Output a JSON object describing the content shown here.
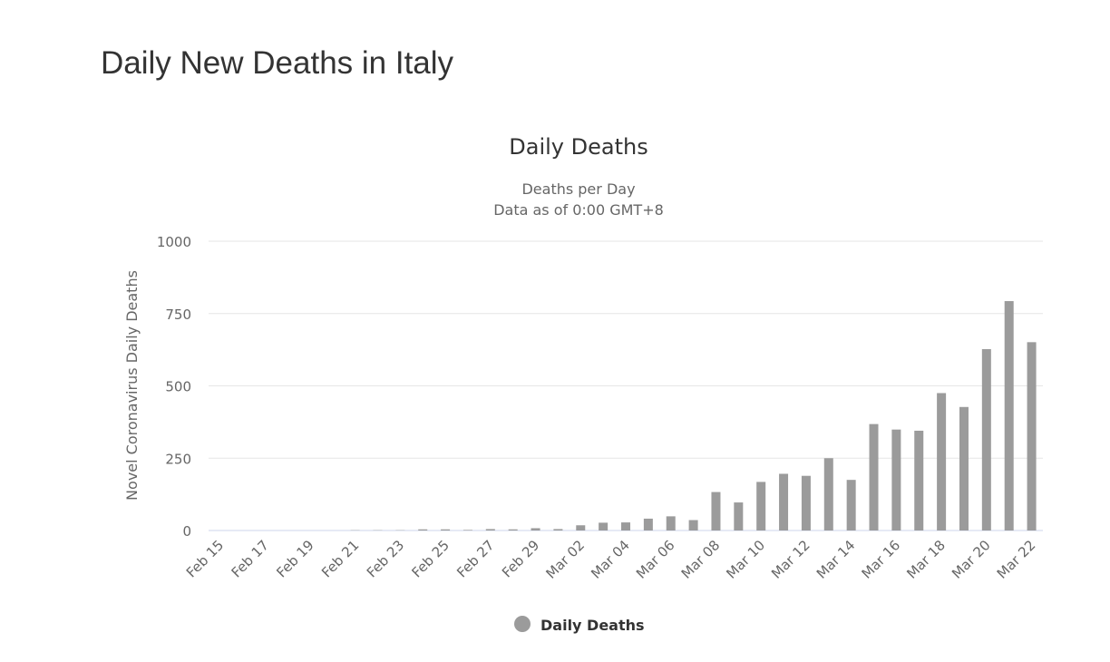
{
  "page": {
    "title": "Daily New Deaths in Italy"
  },
  "chart_data": {
    "type": "bar",
    "title": "Daily Deaths",
    "subtitle_lines": [
      "Deaths per Day",
      "Data as of 0:00 GMT+8"
    ],
    "xlabel": "",
    "ylabel": "Novel Coronavirus Daily Deaths",
    "ylim": [
      0,
      1000
    ],
    "y_ticks": [
      0,
      250,
      500,
      750,
      1000
    ],
    "x_tick_labels": [
      "Feb 15",
      "Feb 17",
      "Feb 19",
      "Feb 21",
      "Feb 23",
      "Feb 25",
      "Feb 27",
      "Feb 29",
      "Mar 02",
      "Mar 04",
      "Mar 06",
      "Mar 08",
      "Mar 10",
      "Mar 12",
      "Mar 14",
      "Mar 16",
      "Mar 18",
      "Mar 20",
      "Mar 22"
    ],
    "grid": true,
    "legend_position": "bottom-center",
    "categories": [
      "Feb 15",
      "Feb 16",
      "Feb 17",
      "Feb 18",
      "Feb 19",
      "Feb 20",
      "Feb 21",
      "Feb 22",
      "Feb 23",
      "Feb 24",
      "Feb 25",
      "Feb 26",
      "Feb 27",
      "Feb 28",
      "Feb 29",
      "Mar 01",
      "Mar 02",
      "Mar 03",
      "Mar 04",
      "Mar 05",
      "Mar 06",
      "Mar 07",
      "Mar 08",
      "Mar 09",
      "Mar 10",
      "Mar 11",
      "Mar 12",
      "Mar 13",
      "Mar 14",
      "Mar 15",
      "Mar 16",
      "Mar 17",
      "Mar 18",
      "Mar 19",
      "Mar 20",
      "Mar 21",
      "Mar 22"
    ],
    "series": [
      {
        "name": "Daily Deaths",
        "color": "#9b9b9b",
        "values": [
          0,
          0,
          0,
          0,
          0,
          0,
          1,
          1,
          1,
          4,
          4,
          2,
          5,
          4,
          8,
          5,
          18,
          27,
          28,
          41,
          49,
          36,
          133,
          97,
          168,
          196,
          189,
          250,
          175,
          368,
          349,
          345,
          475,
          427,
          627,
          793,
          651
        ]
      }
    ]
  }
}
